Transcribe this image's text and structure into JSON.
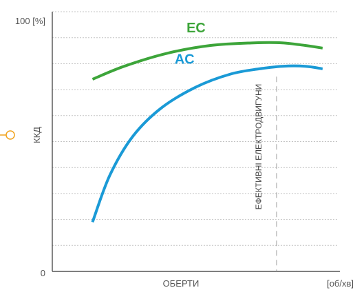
{
  "chart_data": {
    "type": "line",
    "title": "",
    "xlabel": "ОБЕРТИ",
    "x_unit": "[об/хв]",
    "ylabel": "ККД",
    "y_tick_labels": {
      "max": "100 [%]",
      "min": "0"
    },
    "ylim": [
      0,
      100
    ],
    "xlim": [
      0,
      100
    ],
    "grid": {
      "horizontal": true,
      "vertical": false
    },
    "series": [
      {
        "name": "EC",
        "color": "#3da53a",
        "x": [
          14,
          25,
          40,
          55,
          70,
          80,
          88,
          94
        ],
        "y": [
          74,
          79,
          84,
          87,
          88,
          88,
          87,
          86
        ]
      },
      {
        "name": "AC",
        "color": "#1a9ad6",
        "x": [
          14,
          20,
          28,
          38,
          50,
          62,
          72,
          80,
          88,
          94
        ],
        "y": [
          19,
          37,
          52,
          63,
          71,
          76,
          78,
          79,
          79,
          78
        ]
      }
    ],
    "annotation": {
      "text": "ЕФЕКТИВНІ ЕЛЕКТРОДВИГУНИ",
      "x": 78
    },
    "marker_color": "#f0a21c"
  }
}
